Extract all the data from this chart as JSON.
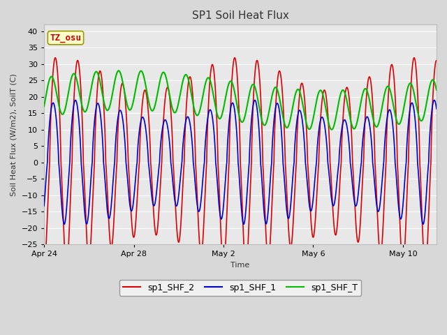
{
  "title": "SP1 Soil Heat Flux",
  "xlabel": "Time",
  "ylabel": "Soil Heat Flux (W/m2), SoilT (C)",
  "ylim": [
    -25,
    42
  ],
  "yticks": [
    -25,
    -20,
    -15,
    -10,
    -5,
    0,
    5,
    10,
    15,
    20,
    25,
    30,
    35,
    40
  ],
  "xlim_days": [
    0,
    17.5
  ],
  "x_tick_labels": [
    "Apr 24",
    "Apr 28",
    "May 2",
    "May 6",
    "May 10"
  ],
  "x_tick_positions": [
    0,
    4,
    8,
    12,
    16
  ],
  "annotation_text": "TZ_osu",
  "annotation_color": "#cc0000",
  "annotation_bg": "#ffffcc",
  "annotation_border": "#999900",
  "series": [
    {
      "label": "sp1_SHF_2",
      "color": "#dd0000",
      "linewidth": 1.2
    },
    {
      "label": "sp1_SHF_1",
      "color": "#0000cc",
      "linewidth": 1.2
    },
    {
      "label": "sp1_SHF_T",
      "color": "#00bb00",
      "linewidth": 1.5
    }
  ],
  "plot_bg": "#e8e8e8",
  "fig_bg": "#d8d8d8",
  "grid_color": "#ffffff",
  "title_fontsize": 11,
  "axis_label_fontsize": 8,
  "tick_fontsize": 8
}
